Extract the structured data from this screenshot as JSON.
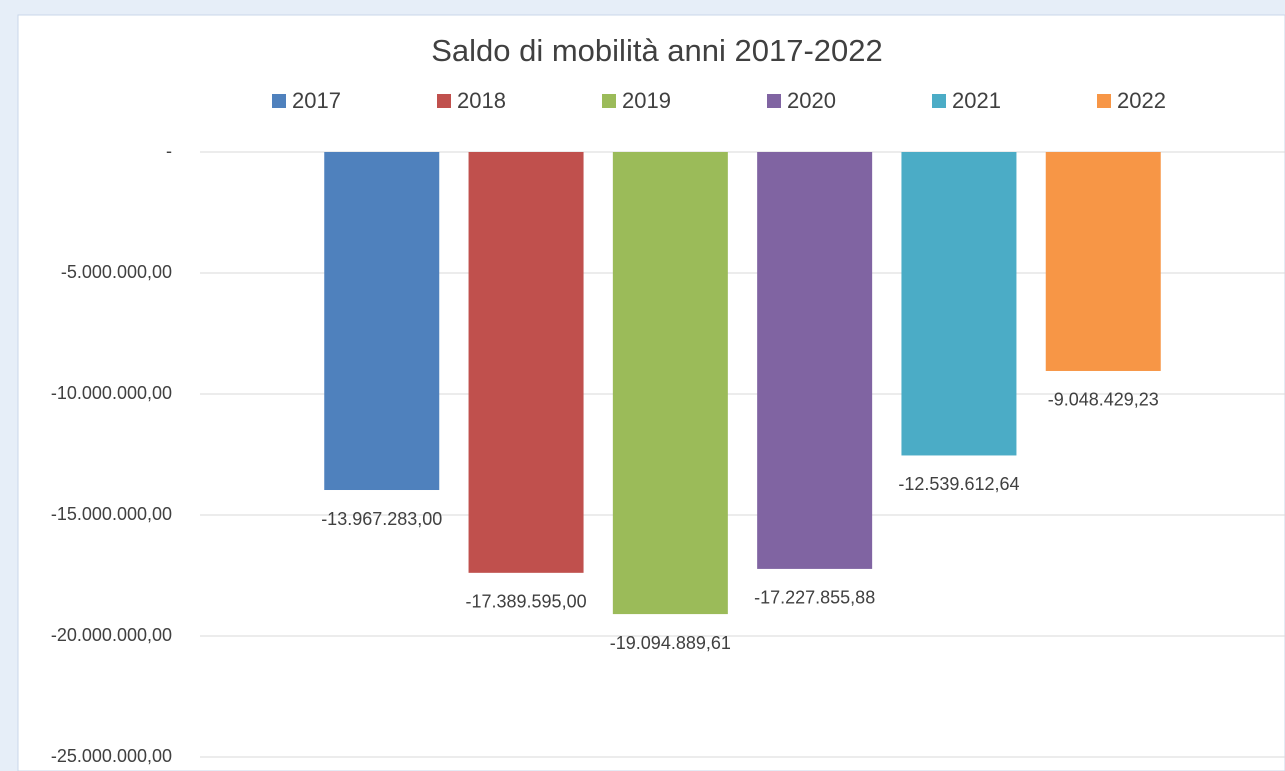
{
  "chart_data": {
    "type": "bar",
    "title": "Saldo di mobilità anni 2017-2022",
    "series": [
      {
        "name": "2017",
        "color": "#4f81bd",
        "values": [
          -13967283.0
        ],
        "value_labels": [
          "-13.967.283,00"
        ]
      },
      {
        "name": "2018",
        "color": "#c0504d",
        "values": [
          -17389595.0
        ],
        "value_labels": [
          "-17.389.595,00"
        ]
      },
      {
        "name": "2019",
        "color": "#9bbb59",
        "values": [
          -19094889.61
        ],
        "value_labels": [
          "-19.094.889,61"
        ]
      },
      {
        "name": "2020",
        "color": "#8064a2",
        "values": [
          -17227855.88
        ],
        "value_labels": [
          "-17.227.855,88"
        ]
      },
      {
        "name": "2021",
        "color": "#4bacc6",
        "values": [
          -12539612.64
        ],
        "value_labels": [
          "-12.539.612,64"
        ]
      },
      {
        "name": "2022",
        "color": "#f79646",
        "values": [
          -9048429.23
        ],
        "value_labels": [
          "-9.048.429,23"
        ]
      }
    ],
    "ylim": [
      -25000000,
      0
    ],
    "yticks": [
      {
        "value": 0,
        "label": "-"
      },
      {
        "value": -5000000,
        "label": "-5.000.000,00"
      },
      {
        "value": -10000000,
        "label": "-10.000.000,00"
      },
      {
        "value": -15000000,
        "label": "-15.000.000,00"
      },
      {
        "value": -20000000,
        "label": "-20.000.000,00"
      },
      {
        "value": -25000000,
        "label": "-25.000.000,00"
      }
    ],
    "grid": true,
    "legend": "top"
  }
}
